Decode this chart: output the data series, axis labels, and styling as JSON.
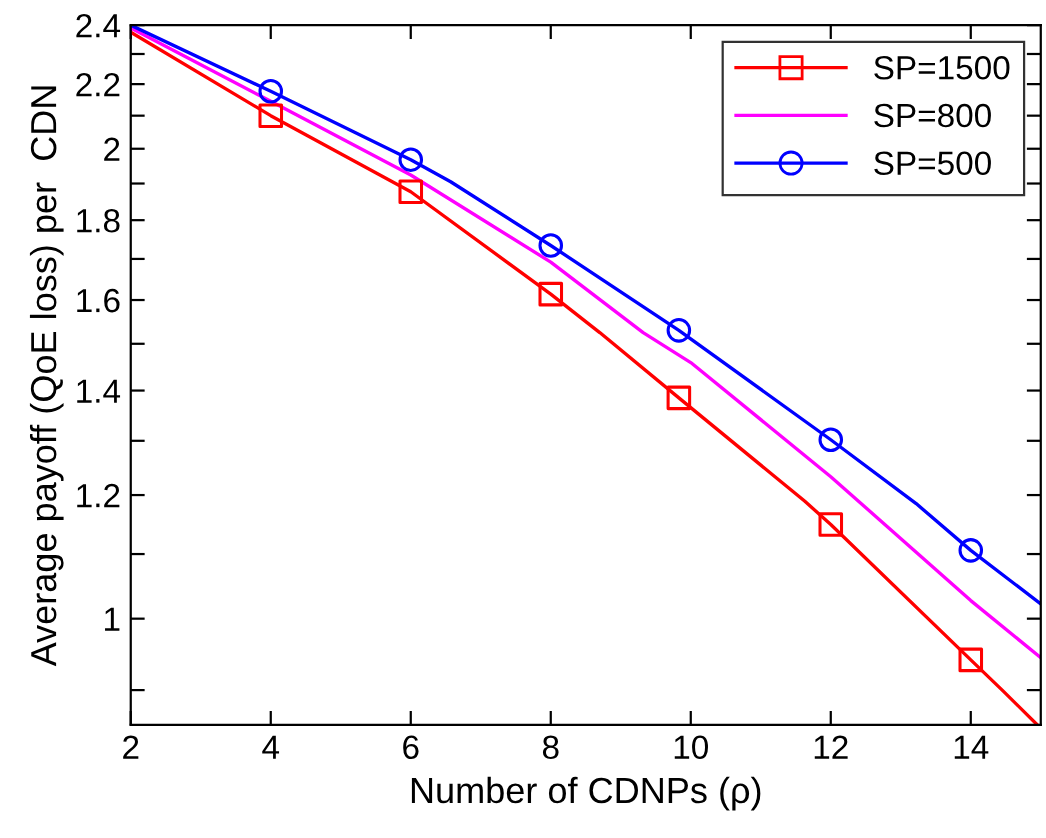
{
  "chart_data": {
    "type": "line",
    "xlabel": "Number of CDNPs (ρ)",
    "ylabel": "Average payoff (QoE loss) per  CDN",
    "log": "y",
    "xlim": [
      2,
      15
    ],
    "ylim": [
      0.855,
      2.4
    ],
    "xticks": [
      2,
      4,
      6,
      8,
      10,
      12,
      14
    ],
    "yticks": [
      {
        "value": 0.9,
        "label": null
      },
      1,
      {
        "value": 1.1,
        "label": null
      },
      1.2,
      {
        "value": 1.3,
        "label": null
      },
      1.4,
      {
        "value": 1.5,
        "label": null
      },
      1.6,
      {
        "value": 1.7,
        "label": null
      },
      1.8,
      {
        "value": 1.9,
        "label": null
      },
      2,
      {
        "value": 2.1,
        "label": null
      },
      2.2,
      {
        "value": 2.3,
        "label": null
      },
      2.4
    ],
    "grid": false,
    "legend": "top right",
    "series": [
      {
        "name": "SP=1500",
        "color": "#ff0000",
        "marker": "none",
        "x": [
          2,
          4,
          6,
          8,
          8.7,
          9.83,
          11.63,
          12,
          14,
          14.46,
          14.95
        ],
        "values": [
          2.375,
          2.1,
          1.877,
          1.614,
          1.525,
          1.385,
          1.189,
          1.149,
          0.941,
          0.899,
          0.855
        ]
      },
      {
        "name": "SP=800",
        "color": "#ff00ff",
        "marker": "none",
        "x": [
          2,
          4,
          6,
          8,
          9.32,
          10,
          12,
          14,
          15
        ],
        "values": [
          2.39,
          2.145,
          1.924,
          1.692,
          1.525,
          1.459,
          1.233,
          1.027,
          0.944
        ]
      },
      {
        "name": "SP=500",
        "color": "#0000ff",
        "marker": "none",
        "x": [
          2,
          4,
          6,
          6.57,
          8,
          9.83,
          12,
          13.22,
          14,
          15
        ],
        "values": [
          2.4,
          2.177,
          1.968,
          1.905,
          1.734,
          1.53,
          1.302,
          1.185,
          1.106,
          1.022
        ]
      },
      {
        "type": "scatter",
        "color": "#ff0000",
        "marker": "square",
        "x": [
          4,
          6,
          8,
          9.83,
          12,
          14
        ],
        "values": [
          2.1,
          1.877,
          1.614,
          1.385,
          1.149,
          0.941
        ]
      },
      {
        "type": "scatter",
        "color": "#0000ff",
        "marker": "circle",
        "x": [
          4,
          6,
          8,
          9.83,
          12,
          14
        ],
        "values": [
          2.177,
          1.968,
          1.734,
          1.53,
          1.302,
          1.106
        ]
      }
    ]
  }
}
